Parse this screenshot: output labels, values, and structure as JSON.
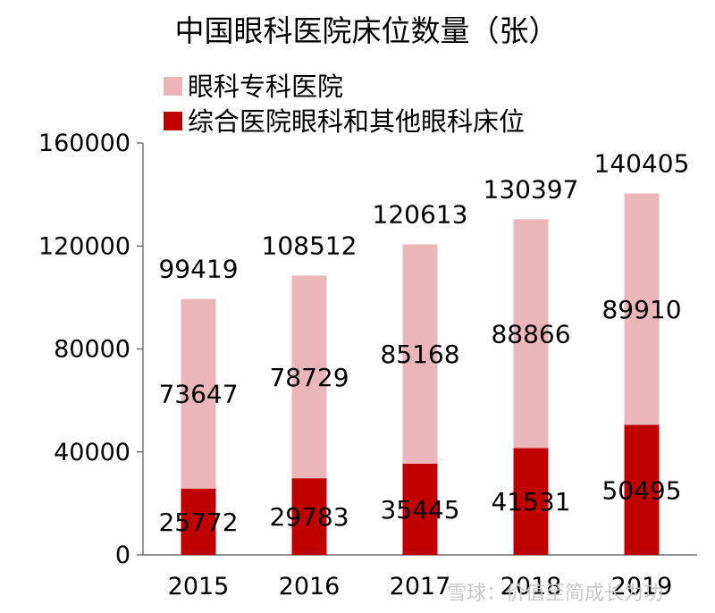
{
  "chart_data": {
    "type": "bar",
    "stacked": true,
    "title": "中国眼科医院床位数量（张）",
    "xlabel": "",
    "ylabel": "",
    "categories": [
      "2015",
      "2016",
      "2017",
      "2018",
      "2019"
    ],
    "series": [
      {
        "name": "综合医院眼科和其他眼科床位",
        "values": [
          25772,
          29783,
          35445,
          41531,
          50495
        ],
        "color": "#c00000"
      },
      {
        "name": "眼科专科医院",
        "values": [
          73647,
          78729,
          85168,
          88866,
          89910
        ],
        "color": "#eab6b9"
      }
    ],
    "totals": [
      99419,
      108512,
      120613,
      130397,
      140405
    ],
    "ylim": [
      0,
      160000
    ],
    "yticks": [
      "0",
      "40000",
      "80000",
      "120000",
      "160000"
    ],
    "grid": false,
    "legend_position": "top-left"
  },
  "watermark": "雪球：价值至简成长为功"
}
